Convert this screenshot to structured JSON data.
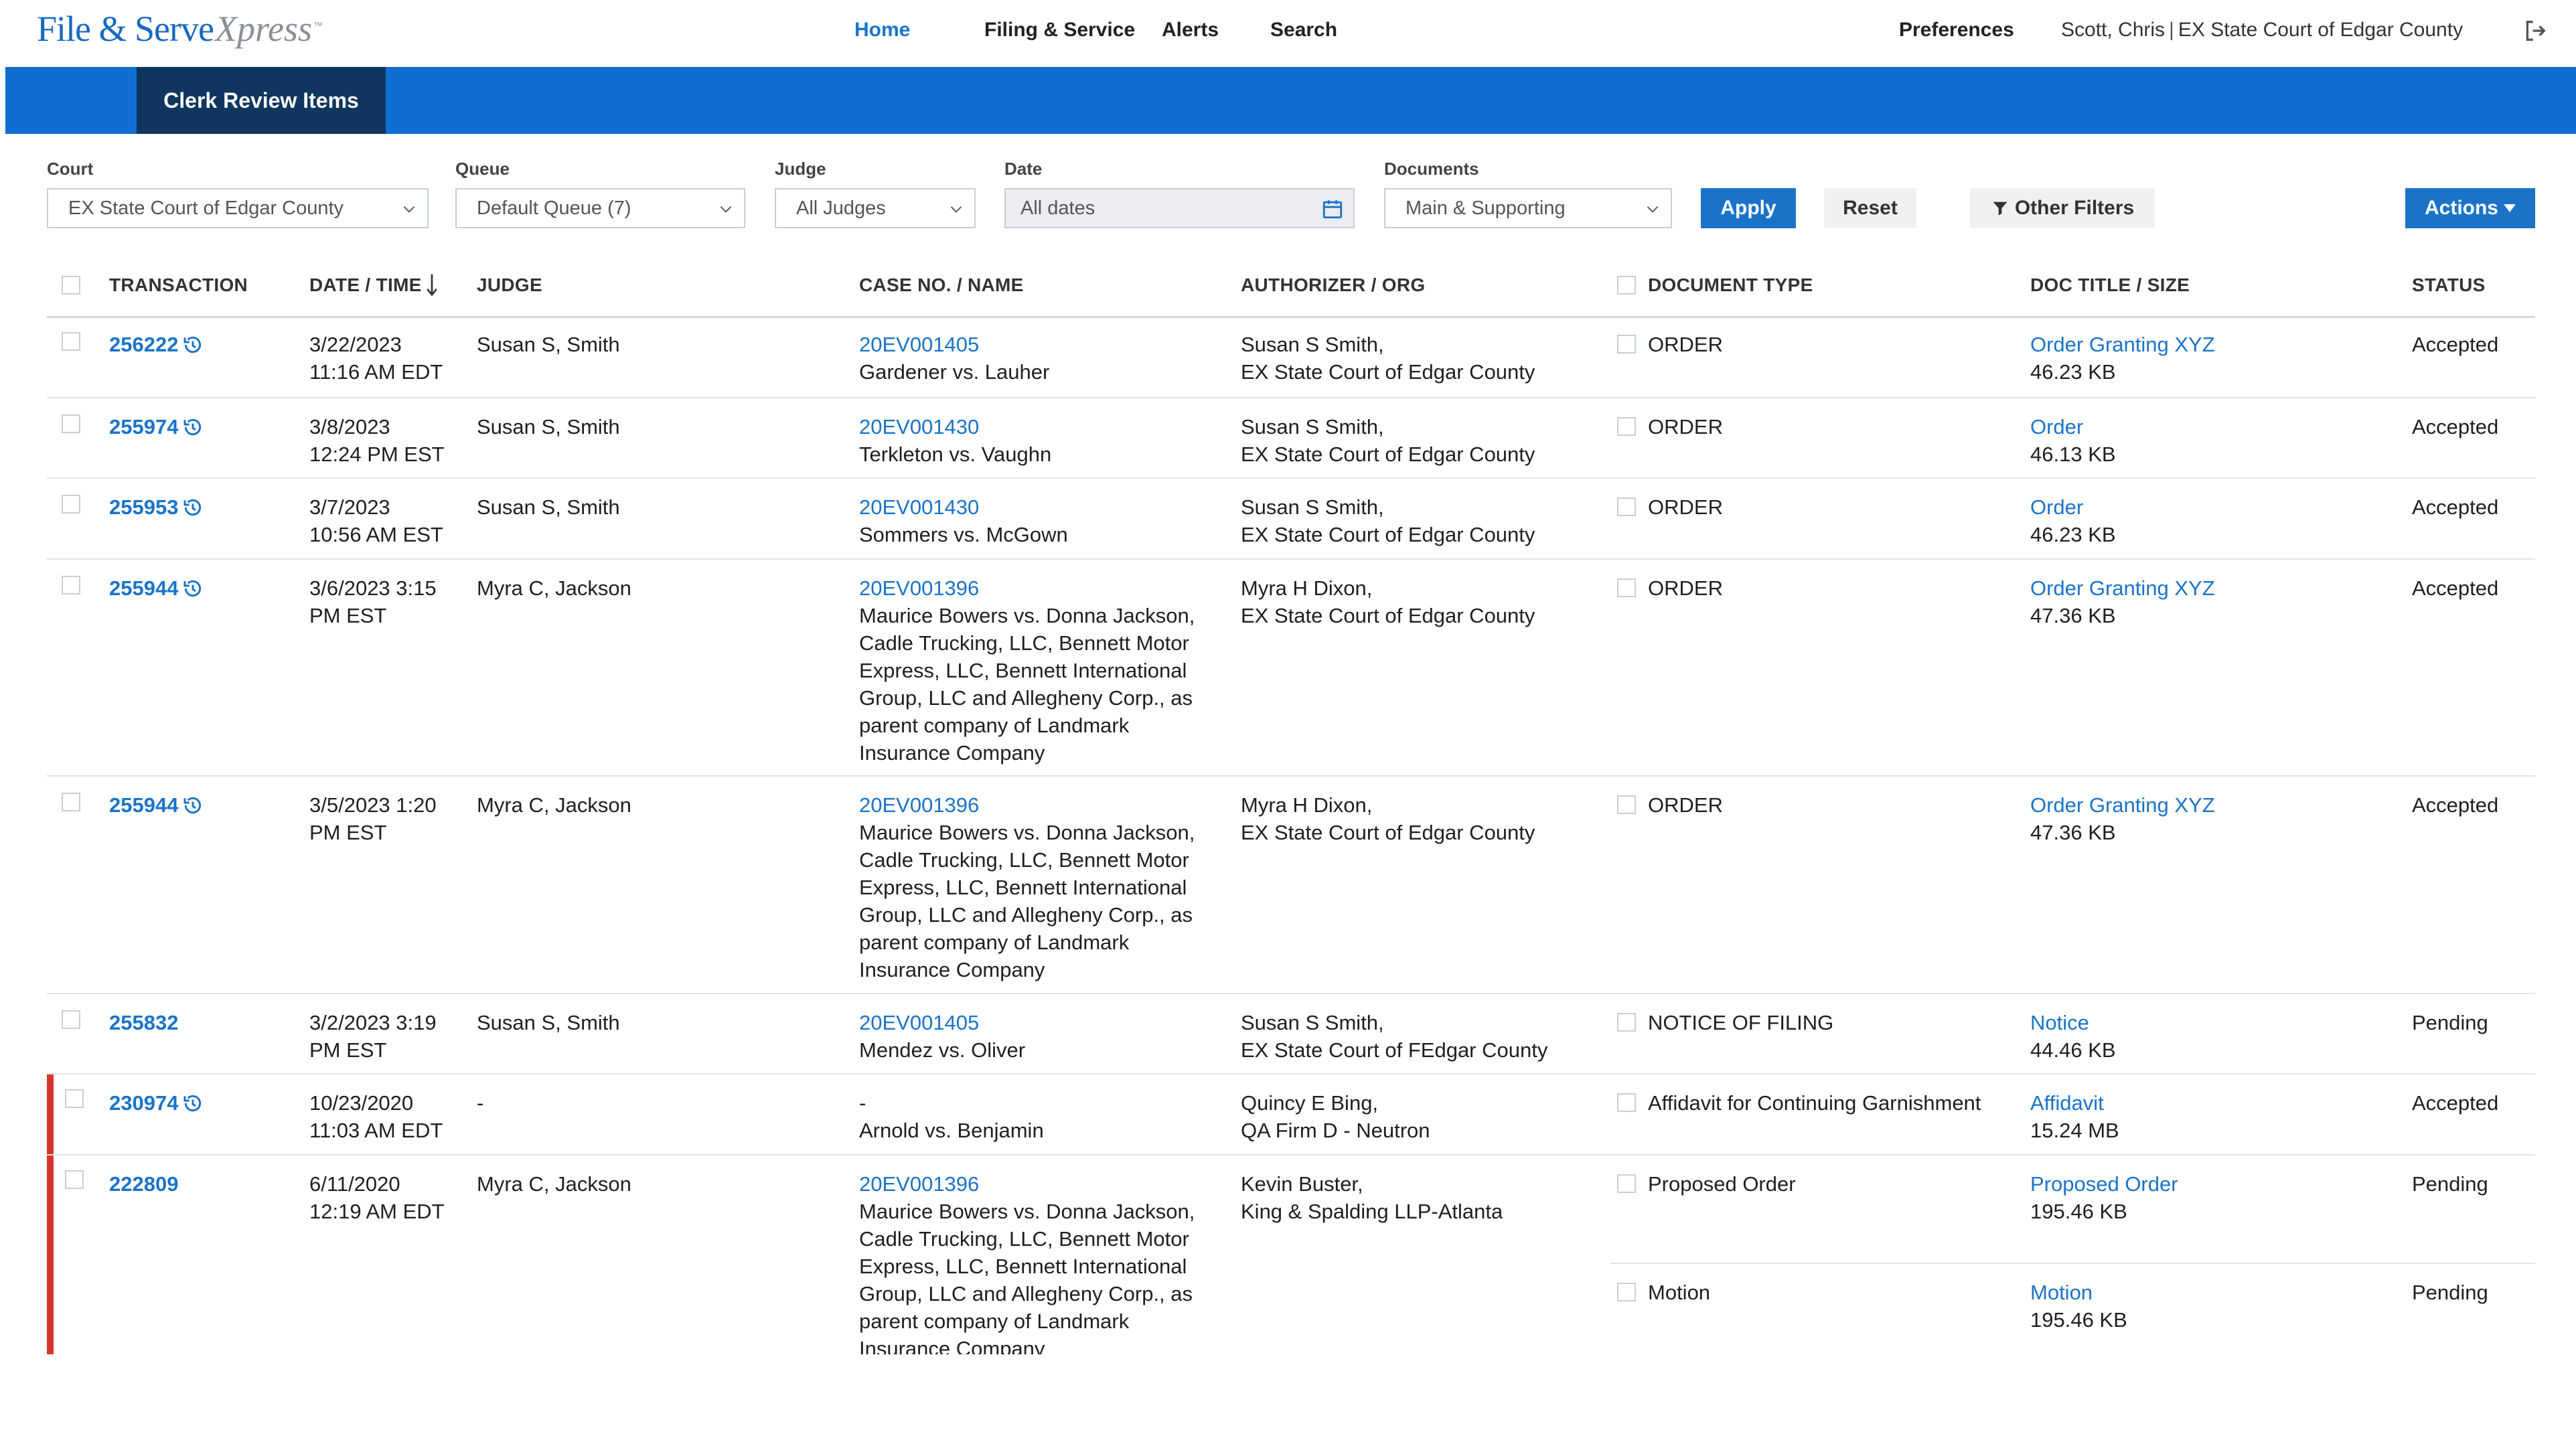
{
  "app": {
    "logo_main": "File & Serve",
    "logo_script": "Xpress",
    "logo_tm": "™"
  },
  "nav": {
    "items": [
      "Home",
      "Filing & Service",
      "Alerts",
      "Search"
    ],
    "active": "Home",
    "preferences": "Preferences",
    "user": "Scott, Chris",
    "court": "EX State Court of Edgar County"
  },
  "bluebar": {
    "tab": "Clerk Review Items"
  },
  "filters": {
    "court": {
      "label": "Court",
      "value": "EX State Court of Edgar County"
    },
    "queue": {
      "label": "Queue",
      "value": "Default Queue (7)"
    },
    "judge": {
      "label": "Judge",
      "value": "All Judges"
    },
    "date": {
      "label": "Date",
      "value": "All dates"
    },
    "documents": {
      "label": "Documents",
      "value": "Main & Supporting"
    },
    "apply": "Apply",
    "reset": "Reset",
    "other_filters": "Other Filters",
    "actions": "Actions"
  },
  "table": {
    "headers": {
      "transaction": "TRANSACTION",
      "datetime": "DATE / TIME",
      "judge": "JUDGE",
      "case": "CASE NO. / NAME",
      "authorizer": "AUTHORIZER / ORG",
      "doctype": "DOCUMENT TYPE",
      "doctitle": "DOC TITLE / SIZE",
      "status": "STATUS"
    },
    "rows": [
      {
        "txn": "256222",
        "date1": "3/22/2023",
        "date2": "11:16 AM EDT",
        "judge": "Susan S, Smith",
        "case_no": "20EV001405",
        "case_name": "Gardener vs. Lauher",
        "auth1": "Susan S Smith,",
        "auth2": "EX State Court of Edgar County",
        "doctype": "ORDER",
        "doctitle": "Order Granting XYZ",
        "docsize": "46.23 KB",
        "status": "Accepted"
      },
      {
        "txn": "255974",
        "date1": "3/8/2023",
        "date2": "12:24 PM EST",
        "judge": "Susan S, Smith",
        "case_no": "20EV001430",
        "case_name": "Terkleton vs. Vaughn",
        "auth1": "Susan S Smith,",
        "auth2": "EX State Court of Edgar County",
        "doctype": "ORDER",
        "doctitle": "Order",
        "docsize": "46.13 KB",
        "status": "Accepted"
      },
      {
        "txn": "255953",
        "date1": "3/7/2023",
        "date2": "10:56 AM EST",
        "judge": "Susan S, Smith",
        "case_no": "20EV001430",
        "case_name": "Sommers vs. McGown",
        "auth1": "Susan S Smith,",
        "auth2": "EX State Court of Edgar County",
        "doctype": "ORDER",
        "doctitle": "Order",
        "docsize": "46.23 KB",
        "status": "Accepted"
      },
      {
        "txn": "255944",
        "date1": "3/6/2023 3:15",
        "date2": "PM EST",
        "judge": "Myra C, Jackson",
        "case_no": "20EV001396",
        "case_name_lines": [
          "Maurice Bowers vs. Donna Jackson,",
          "Cadle Trucking, LLC, Bennett Motor",
          "Express, LLC, Bennett International",
          "Group, LLC and Allegheny Corp., as",
          "parent company of Landmark",
          "Insurance Company"
        ],
        "auth1": "Myra H Dixon,",
        "auth2": "EX State Court of Edgar County",
        "doctype": "ORDER",
        "doctitle": "Order Granting XYZ",
        "docsize": "47.36 KB",
        "status": "Accepted"
      },
      {
        "txn": "255944",
        "date1": "3/5/2023 1:20",
        "date2": "PM EST",
        "judge": "Myra C, Jackson",
        "case_no": "20EV001396",
        "case_name_lines": [
          "Maurice Bowers vs. Donna Jackson,",
          "Cadle Trucking, LLC, Bennett Motor",
          "Express, LLC, Bennett International",
          "Group, LLC and Allegheny Corp., as",
          "parent company of Landmark",
          "Insurance Company"
        ],
        "auth1": "Myra H Dixon,",
        "auth2": "EX State Court of Edgar County",
        "doctype": "ORDER",
        "doctitle": "Order Granting XYZ",
        "docsize": "47.36 KB",
        "status": "Accepted"
      },
      {
        "txn": "255832",
        "date1": "3/2/2023 3:19",
        "date2": "PM EST",
        "judge": "Susan S, Smith",
        "case_no": "20EV001405",
        "case_name": "Mendez vs. Oliver",
        "auth1": "Susan S Smith,",
        "auth2": "EX State Court of FEdgar County",
        "doctype": "NOTICE OF FILING",
        "doctitle": "Notice",
        "docsize": "44.46 KB",
        "status": "Pending"
      },
      {
        "txn": "230974",
        "date1": "10/23/2020",
        "date2": "11:03 AM EDT",
        "judge": "-",
        "case_no": "-",
        "case_name": "Arnold vs. Benjamin",
        "auth1": "Quincy E Bing,",
        "auth2": "QA Firm D - Neutron",
        "doctype": "Affidavit for Continuing Garnishment",
        "doctitle": "Affidavit",
        "docsize": "15.24 MB",
        "status": "Accepted"
      },
      {
        "txn": "222809",
        "date1": "6/11/2020",
        "date2": "12:19 AM EDT",
        "judge": "Myra C, Jackson",
        "case_no": "20EV001396",
        "case_name_lines": [
          "Maurice Bowers vs. Donna Jackson,",
          "Cadle Trucking, LLC, Bennett Motor",
          "Express, LLC, Bennett International",
          "Group, LLC and Allegheny Corp., as",
          "parent company of Landmark",
          "Insurance Company"
        ],
        "auth1": "Kevin Buster,",
        "auth2": "King & Spalding LLP-Atlanta",
        "doctype": "Proposed Order",
        "doctitle": "Proposed Order",
        "docsize": "195.46 KB",
        "status": "Pending",
        "doctype2": "Motion",
        "doctitle2": "Motion",
        "docsize2": "195.46 KB",
        "status2": "Pending"
      }
    ]
  },
  "colors": {
    "brand_blue": "#0f6fd0",
    "tab_navy": "#10365f",
    "link_blue": "#1a73c9",
    "flag_red": "#d9362b"
  },
  "icons": {
    "history": "history-icon",
    "calendar": "calendar-icon",
    "chevron": "chevron-down-icon",
    "filter": "filter-icon",
    "logout": "logout-icon",
    "sort": "sort-down-arrow-icon"
  }
}
